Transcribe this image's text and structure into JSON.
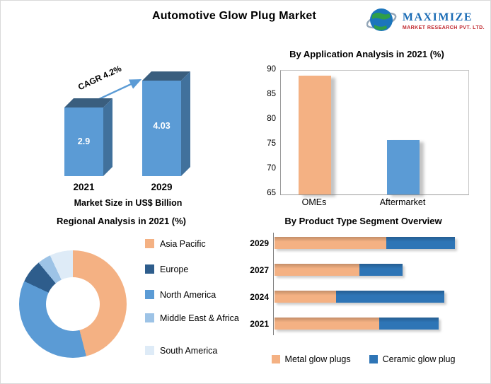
{
  "header": {
    "title": "Automotive Glow Plug Market",
    "logo": {
      "brand": "MAXIMIZE",
      "subbrand": "MARKET RESEARCH PVT. LTD.",
      "icon": "globe-icon",
      "brand_color": "#1B6CB5",
      "subbrand_color": "#C0272D"
    }
  },
  "palette": {
    "orange": "#F4B183",
    "blue": "#5B9BD5",
    "dark_blue": "#2E75B6",
    "navy": "#2E5D8C",
    "light_blue": "#9DC3E6",
    "pale_blue": "#DEEBF7"
  },
  "chart_data": [
    {
      "id": "market_size",
      "type": "bar",
      "title": "Market Size in US$ Billion",
      "annotation": "CAGR 4.2%",
      "categories": [
        "2021",
        "2029"
      ],
      "values": [
        2.9,
        4.03
      ],
      "value_labels": [
        "2.9",
        "4.03"
      ],
      "bar_color": "#5B9BD5",
      "style": "3d"
    },
    {
      "id": "application",
      "type": "bar",
      "title": "By Application Analysis in 2021 (%)",
      "categories": [
        "OMEs",
        "Aftermarket"
      ],
      "values": [
        89,
        76
      ],
      "colors": [
        "#F4B183",
        "#5B9BD5"
      ],
      "ylim": [
        65,
        90
      ],
      "yticks": [
        65,
        70,
        75,
        80,
        85,
        90
      ],
      "grid": false
    },
    {
      "id": "regional",
      "type": "pie",
      "donut": true,
      "title": "Regional Analysis in 2021 (%)",
      "labels": [
        "Asia Pacific",
        "Europe",
        "North America",
        "Middle East & Africa",
        "South America"
      ],
      "values": [
        46,
        7,
        36,
        4,
        7
      ],
      "colors": [
        "#F4B183",
        "#2E5D8C",
        "#5B9BD5",
        "#9DC3E6",
        "#DEEBF7"
      ],
      "plot_order": [
        0,
        2,
        1,
        3,
        4
      ],
      "legend_position": "right"
    },
    {
      "id": "product_type",
      "type": "bar",
      "orientation": "horizontal",
      "stacked": true,
      "title": "By Product Type Segment Overview",
      "categories": [
        "2029",
        "2027",
        "2024",
        "2021"
      ],
      "series": [
        {
          "name": "Metal glow plugs",
          "color": "#F4B183",
          "values": [
            62,
            47,
            34,
            58
          ]
        },
        {
          "name": "Ceramic glow plug",
          "color": "#2E75B6",
          "values": [
            38,
            24,
            60,
            33
          ]
        }
      ],
      "xlim": [
        0,
        100
      ],
      "axis_labels_shown": false,
      "legend_position": "bottom"
    }
  ]
}
